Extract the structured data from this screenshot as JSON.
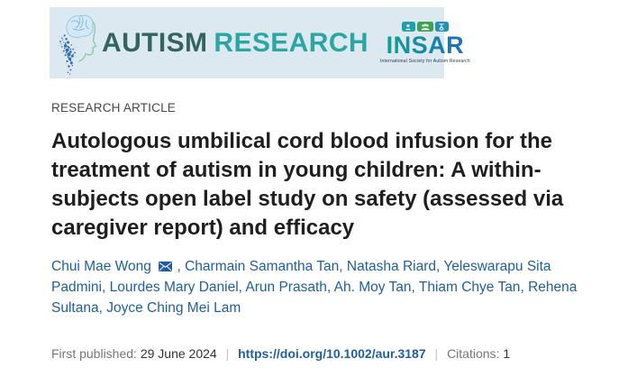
{
  "banner": {
    "journal_name": {
      "part1": "AUTISM",
      "part2": "RESEARCH"
    },
    "insar": {
      "acronym": "INSAR",
      "tagline": "International Society for Autism Research"
    }
  },
  "article": {
    "kicker": "RESEARCH ARTICLE",
    "title": "Autologous umbilical cord blood infusion for the treatment of autism in young children: A within-subjects open label study on safety (assessed via caregiver report) and efficacy",
    "authors": [
      "Chui Mae Wong",
      "Charmain Samantha Tan",
      "Natasha Riard",
      "Yeleswarapu Sita Padmini",
      "Lourdes Mary Daniel",
      "Arun Prasath",
      "Ah. Moy Tan",
      "Thiam Chye Tan",
      "Rehena Sultana",
      "Joyce Ching Mei Lam"
    ],
    "corresponding_author": "Chui Mae Wong"
  },
  "meta": {
    "first_published_label": "First published:",
    "first_published_date": "29 June 2024",
    "separator": "|",
    "doi": "https://doi.org/10.1002/aur.3187",
    "citations_label": "Citations:",
    "citations_count": "1"
  },
  "colors": {
    "banner_bg": "#dde9f0",
    "journal_part1": "#33655e",
    "journal_part2": "#2ca6a4",
    "insar_teal": "#139b94",
    "insar_blue": "#1b74ba",
    "author_link": "#20609f",
    "title_text": "#1f1f1f",
    "meta_label": "#767676",
    "meta_value": "#333333"
  }
}
